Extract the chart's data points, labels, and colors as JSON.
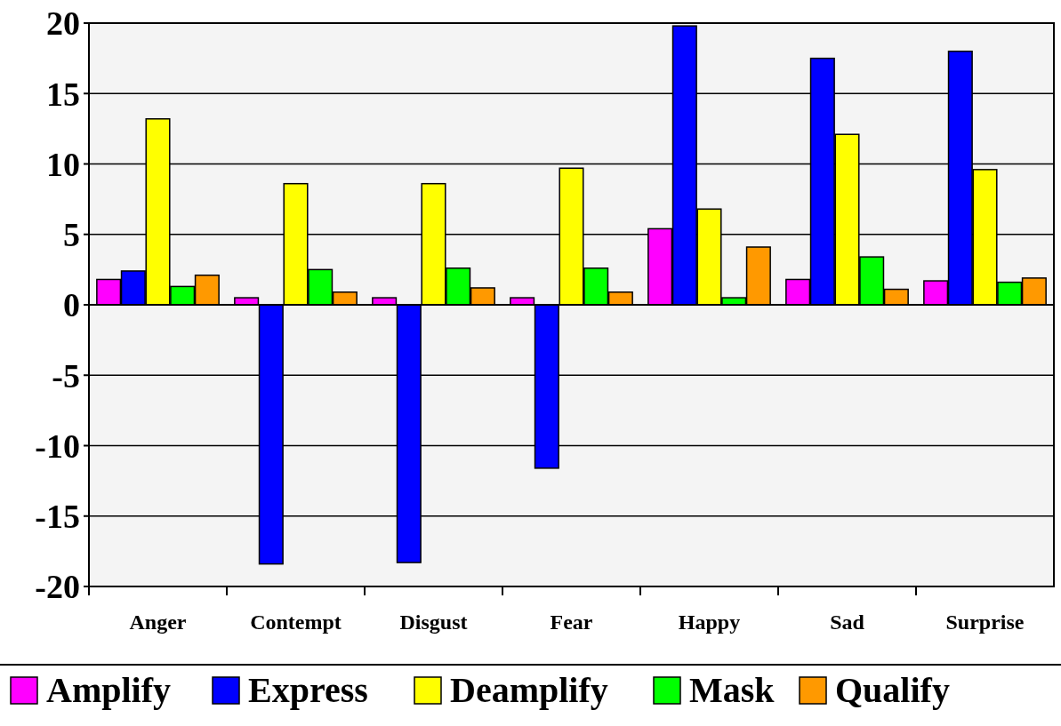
{
  "chart_data": {
    "type": "bar",
    "categories": [
      "Anger",
      "Contempt",
      "Disgust",
      "Fear",
      "Happy",
      "Sad",
      "Surprise"
    ],
    "series": [
      {
        "name": "Amplify",
        "color": "#ff00ff",
        "values": [
          1.8,
          0.5,
          0.5,
          0.5,
          5.4,
          1.8,
          1.7
        ]
      },
      {
        "name": "Express",
        "color": "#0000ff",
        "values": [
          2.4,
          -18.4,
          -18.3,
          -11.6,
          19.8,
          17.5,
          18.0
        ]
      },
      {
        "name": "Deamplify",
        "color": "#ffff00",
        "values": [
          13.2,
          8.6,
          8.6,
          9.7,
          6.8,
          12.1,
          9.6
        ]
      },
      {
        "name": "Mask",
        "color": "#00ff00",
        "values": [
          1.3,
          2.5,
          2.6,
          2.6,
          0.5,
          3.4,
          1.6
        ]
      },
      {
        "name": "Qualify",
        "color": "#ff9900",
        "values": [
          2.1,
          0.9,
          1.2,
          0.9,
          4.1,
          1.1,
          1.9
        ]
      }
    ],
    "ylim": [
      -20,
      20
    ],
    "yticks": [
      -20,
      -15,
      -10,
      -5,
      0,
      5,
      10,
      15,
      20
    ],
    "grid": "y",
    "legend": "bottom"
  }
}
